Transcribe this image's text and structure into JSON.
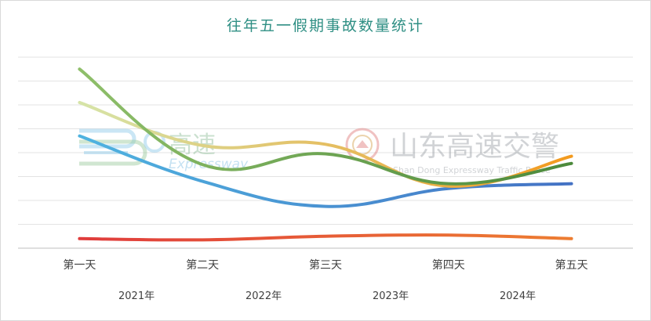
{
  "chart_data": {
    "type": "line",
    "title": "往年五一假期事故数量统计",
    "categories": [
      "第一天",
      "第二天",
      "第三天",
      "第四天",
      "第五天"
    ],
    "series": [
      {
        "name": "2021年",
        "values": [
          47,
          28,
          17.5,
          25,
          27
        ],
        "color_start": "#4fb3e0",
        "color_end": "#4472c4"
      },
      {
        "name": "2022年",
        "values": [
          4,
          3.5,
          5,
          5.5,
          4
        ],
        "color_start": "#e03c3c",
        "color_end": "#ed7d31"
      },
      {
        "name": "2023年",
        "values": [
          61,
          43,
          43.5,
          26,
          38.5
        ],
        "color_start": "#d6e4a8",
        "color_end": "#f39a1e"
      },
      {
        "name": "2024年",
        "values": [
          75,
          35,
          39.5,
          27,
          35.5
        ],
        "color_start": "#8fbf6a",
        "color_end": "#4c8a3c"
      }
    ],
    "ylim": [
      0,
      80
    ],
    "y_gridlines": 8,
    "grid": true,
    "legend": "bottom",
    "xlabel": "",
    "ylabel": ""
  },
  "watermarks": {
    "left_brand": "高速",
    "left_brand_en": "Expressway",
    "right_brand": "山东高速交警",
    "right_brand_en": "Shan Dong Expressway Traffic Police"
  }
}
